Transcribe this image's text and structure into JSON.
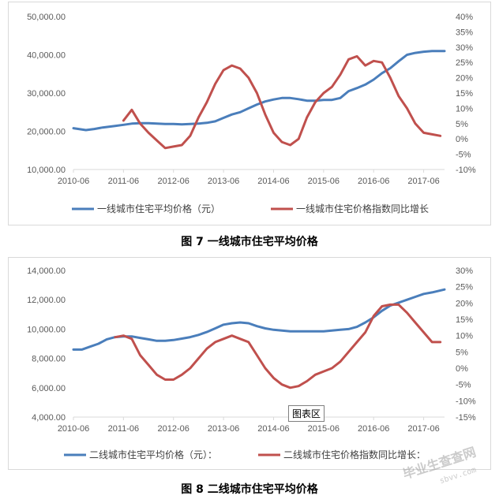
{
  "chart_data": [
    {
      "type": "line",
      "title": "",
      "categories": [
        "2010-06",
        "2011-06",
        "2012-06",
        "2013-06",
        "2014-06",
        "2015-06",
        "2016-06",
        "2017-06"
      ],
      "y_left": {
        "ticks": [
          "10,000.00",
          "20,000.00",
          "30,000.00",
          "40,000.00",
          "50,000.00"
        ],
        "min": 10000,
        "max": 50000
      },
      "y_right": {
        "ticks": [
          "-10%",
          "-5%",
          "0%",
          "5%",
          "10%",
          "15%",
          "20%",
          "25%",
          "30%",
          "35%",
          "40%"
        ],
        "min": -10,
        "max": 40
      },
      "x_range": [
        0,
        89
      ],
      "series": [
        {
          "name": "一线城市住宅平均价格（元）",
          "axis": "left",
          "color": "#4a7ebb",
          "points": [
            [
              0,
              20800
            ],
            [
              3,
              20300
            ],
            [
              5,
              20600
            ],
            [
              7,
              21000
            ],
            [
              10,
              21400
            ],
            [
              12,
              21700
            ],
            [
              14,
              22000
            ],
            [
              16,
              22100
            ],
            [
              18,
              22100
            ],
            [
              20,
              22000
            ],
            [
              22,
              21900
            ],
            [
              24,
              21900
            ],
            [
              26,
              21800
            ],
            [
              28,
              21900
            ],
            [
              30,
              22000
            ],
            [
              32,
              22200
            ],
            [
              34,
              22600
            ],
            [
              36,
              23500
            ],
            [
              38,
              24400
            ],
            [
              40,
              25000
            ],
            [
              42,
              26000
            ],
            [
              44,
              27000
            ],
            [
              46,
              27800
            ],
            [
              48,
              28300
            ],
            [
              50,
              28700
            ],
            [
              52,
              28700
            ],
            [
              54,
              28400
            ],
            [
              56,
              28000
            ],
            [
              58,
              28000
            ],
            [
              60,
              28200
            ],
            [
              62,
              28200
            ],
            [
              64,
              28700
            ],
            [
              66,
              30500
            ],
            [
              68,
              31300
            ],
            [
              70,
              32200
            ],
            [
              72,
              33500
            ],
            [
              74,
              35200
            ],
            [
              76,
              36500
            ],
            [
              78,
              38300
            ],
            [
              80,
              40000
            ],
            [
              82,
              40500
            ],
            [
              84,
              40800
            ],
            [
              86,
              41000
            ],
            [
              89,
              41000
            ]
          ]
        },
        {
          "name": "一线城市住宅价格指数同比增长",
          "axis": "right",
          "color": "#c0504d",
          "points": [
            [
              12,
              6
            ],
            [
              14,
              9.5
            ],
            [
              16,
              5
            ],
            [
              18,
              2
            ],
            [
              20,
              -0.5
            ],
            [
              22,
              -3
            ],
            [
              24,
              -2.5
            ],
            [
              26,
              -2
            ],
            [
              28,
              1
            ],
            [
              30,
              7
            ],
            [
              32,
              12
            ],
            [
              34,
              18
            ],
            [
              36,
              22.5
            ],
            [
              38,
              24
            ],
            [
              40,
              23
            ],
            [
              42,
              20
            ],
            [
              44,
              15
            ],
            [
              46,
              8
            ],
            [
              48,
              2
            ],
            [
              50,
              -1
            ],
            [
              52,
              -2
            ],
            [
              54,
              0
            ],
            [
              56,
              7
            ],
            [
              58,
              12
            ],
            [
              60,
              15
            ],
            [
              62,
              17
            ],
            [
              64,
              21
            ],
            [
              66,
              26
            ],
            [
              68,
              27
            ],
            [
              70,
              24
            ],
            [
              72,
              25.5
            ],
            [
              74,
              25
            ],
            [
              76,
              20
            ],
            [
              78,
              14
            ],
            [
              80,
              10
            ],
            [
              82,
              5
            ],
            [
              84,
              2
            ],
            [
              86,
              1.5
            ],
            [
              88,
              1
            ]
          ]
        }
      ],
      "legend": "bottom"
    },
    {
      "type": "line",
      "title": "",
      "categories": [
        "2010-06",
        "2011-06",
        "2012-06",
        "2013-06",
        "2014-06",
        "2015-06",
        "2016-06",
        "2017-06"
      ],
      "y_left": {
        "ticks": [
          "4,000.00",
          "6,000.00",
          "8,000.00",
          "10,000.00",
          "12,000.00",
          "14,000.00"
        ],
        "min": 4000,
        "max": 14000
      },
      "y_right": {
        "ticks": [
          "-15%",
          "-10%",
          "-5%",
          "0%",
          "5%",
          "10%",
          "15%",
          "20%",
          "25%",
          "30%"
        ],
        "min": -15,
        "max": 30
      },
      "x_range": [
        0,
        89
      ],
      "series": [
        {
          "name": "二线城市住宅平均价格（元）：",
          "axis": "left",
          "color": "#4a7ebb",
          "points": [
            [
              0,
              8600
            ],
            [
              2,
              8600
            ],
            [
              4,
              8800
            ],
            [
              6,
              9000
            ],
            [
              8,
              9300
            ],
            [
              10,
              9450
            ],
            [
              12,
              9500
            ],
            [
              14,
              9500
            ],
            [
              16,
              9400
            ],
            [
              18,
              9300
            ],
            [
              20,
              9200
            ],
            [
              22,
              9200
            ],
            [
              24,
              9250
            ],
            [
              26,
              9350
            ],
            [
              28,
              9450
            ],
            [
              30,
              9600
            ],
            [
              32,
              9800
            ],
            [
              34,
              10050
            ],
            [
              36,
              10300
            ],
            [
              38,
              10400
            ],
            [
              40,
              10450
            ],
            [
              42,
              10400
            ],
            [
              44,
              10200
            ],
            [
              46,
              10050
            ],
            [
              48,
              9950
            ],
            [
              50,
              9900
            ],
            [
              52,
              9850
            ],
            [
              54,
              9850
            ],
            [
              56,
              9850
            ],
            [
              58,
              9850
            ],
            [
              60,
              9850
            ],
            [
              62,
              9900
            ],
            [
              64,
              9950
            ],
            [
              66,
              10000
            ],
            [
              68,
              10150
            ],
            [
              70,
              10450
            ],
            [
              72,
              10800
            ],
            [
              74,
              11250
            ],
            [
              76,
              11600
            ],
            [
              78,
              11800
            ],
            [
              80,
              12000
            ],
            [
              82,
              12200
            ],
            [
              84,
              12400
            ],
            [
              86,
              12500
            ],
            [
              89,
              12700
            ]
          ]
        },
        {
          "name": "二线城市住宅价格指数同比增长：",
          "axis": "right",
          "color": "#c0504d",
          "points": [
            [
              10,
              9.5
            ],
            [
              12,
              10
            ],
            [
              14,
              9
            ],
            [
              16,
              4
            ],
            [
              18,
              1
            ],
            [
              20,
              -2
            ],
            [
              22,
              -3.5
            ],
            [
              24,
              -3.5
            ],
            [
              26,
              -2
            ],
            [
              28,
              0
            ],
            [
              30,
              3
            ],
            [
              32,
              6
            ],
            [
              34,
              8
            ],
            [
              36,
              9
            ],
            [
              38,
              10
            ],
            [
              40,
              9
            ],
            [
              42,
              8
            ],
            [
              44,
              4
            ],
            [
              46,
              0
            ],
            [
              48,
              -3
            ],
            [
              50,
              -5
            ],
            [
              52,
              -6
            ],
            [
              54,
              -5.5
            ],
            [
              56,
              -4
            ],
            [
              58,
              -2
            ],
            [
              60,
              -1
            ],
            [
              62,
              0
            ],
            [
              64,
              2
            ],
            [
              66,
              5
            ],
            [
              68,
              8
            ],
            [
              70,
              11
            ],
            [
              72,
              16
            ],
            [
              74,
              19
            ],
            [
              76,
              19.5
            ],
            [
              78,
              19.5
            ],
            [
              80,
              17
            ],
            [
              82,
              14
            ],
            [
              84,
              11
            ],
            [
              86,
              8
            ],
            [
              88,
              8
            ]
          ]
        }
      ],
      "legend": "bottom"
    }
  ],
  "captions": [
    "图 7 一线城市住宅平均价格",
    "图 8 二线城市住宅平均价格"
  ],
  "chip_label": "图表区",
  "watermark": [
    "毕业生查查网",
    "sbvv.com"
  ]
}
